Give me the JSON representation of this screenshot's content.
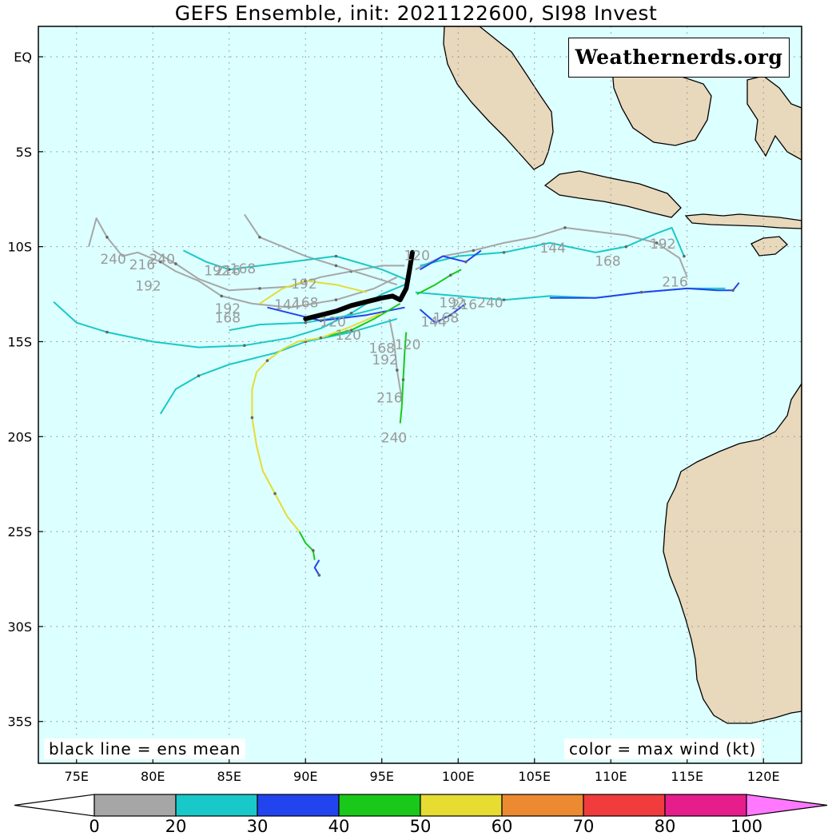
{
  "title": "GEFS Ensemble, init: 2021122600, SI98 Invest",
  "watermark": "Weathernerds.org",
  "notes": {
    "left": "black line = ens mean",
    "right": "color = max wind (kt)"
  },
  "map": {
    "lon_range": [
      72.5,
      122.5
    ],
    "lat_range": [
      -37.2,
      1.6
    ],
    "ocean_color": "#dcffff",
    "land_color": "#e8d8bc",
    "grid": "dotted"
  },
  "axes": {
    "x_ticks": [
      {
        "lon": 75,
        "label": "75E"
      },
      {
        "lon": 80,
        "label": "80E"
      },
      {
        "lon": 85,
        "label": "85E"
      },
      {
        "lon": 90,
        "label": "90E"
      },
      {
        "lon": 95,
        "label": "95E"
      },
      {
        "lon": 100,
        "label": "100E"
      },
      {
        "lon": 105,
        "label": "105E"
      },
      {
        "lon": 110,
        "label": "110E"
      },
      {
        "lon": 115,
        "label": "115E"
      },
      {
        "lon": 120,
        "label": "120E"
      }
    ],
    "y_ticks": [
      {
        "lat": 0,
        "label": "EQ"
      },
      {
        "lat": -5,
        "label": "5S"
      },
      {
        "lat": -10,
        "label": "10S"
      },
      {
        "lat": -15,
        "label": "15S"
      },
      {
        "lat": -20,
        "label": "20S"
      },
      {
        "lat": -25,
        "label": "25S"
      },
      {
        "lat": -30,
        "label": "30S"
      },
      {
        "lat": -35,
        "label": "35S"
      }
    ]
  },
  "colorbar": {
    "bins": [
      {
        "color": "#a6a6a6"
      },
      {
        "color": "#19c8c8"
      },
      {
        "color": "#2244ee"
      },
      {
        "color": "#19c819"
      },
      {
        "color": "#e6dc32"
      },
      {
        "color": "#ec8a32"
      },
      {
        "color": "#f03c3c"
      },
      {
        "color": "#e61e8c"
      }
    ],
    "over_color": "#ff78ff",
    "labels": [
      "0",
      "20",
      "30",
      "40",
      "50",
      "60",
      "70",
      "80",
      "100"
    ]
  },
  "tracks": {
    "ensemble_mean": [
      [
        90.0,
        -13.8
      ],
      [
        91.0,
        -13.6
      ],
      [
        92.0,
        -13.4
      ],
      [
        93.0,
        -13.1
      ],
      [
        94.0,
        -12.9
      ],
      [
        95.0,
        -12.7
      ],
      [
        95.7,
        -12.6
      ],
      [
        96.2,
        -12.8
      ],
      [
        96.6,
        -12.2
      ],
      [
        96.8,
        -11.3
      ],
      [
        97.0,
        -10.3
      ]
    ],
    "members": [
      {
        "color": "#a6a6a6",
        "points": [
          [
            96.0,
            -11.6
          ],
          [
            94.5,
            -12.2
          ],
          [
            92.0,
            -12.8
          ],
          [
            89.0,
            -13.2
          ],
          [
            86.5,
            -13.0
          ],
          [
            84.5,
            -12.6
          ],
          [
            83.0,
            -11.8
          ],
          [
            81.5,
            -11.3
          ],
          [
            80.5,
            -10.8
          ],
          [
            79.0,
            -10.3
          ],
          [
            78.0,
            -10.5
          ],
          [
            77.0,
            -9.5
          ],
          [
            76.3,
            -8.5
          ],
          [
            75.8,
            -10.0
          ]
        ]
      },
      {
        "color": "#a6a6a6",
        "points": [
          [
            96.5,
            -11.0
          ],
          [
            95.0,
            -11.0
          ],
          [
            93.0,
            -11.3
          ],
          [
            91.0,
            -11.6
          ],
          [
            89.0,
            -12.1
          ],
          [
            87.0,
            -12.2
          ],
          [
            85.0,
            -12.3
          ],
          [
            83.0,
            -11.7
          ],
          [
            81.5,
            -10.9
          ],
          [
            80.0,
            -10.2
          ]
        ]
      },
      {
        "color": "#a6a6a6",
        "points": [
          [
            97.2,
            -11.2
          ],
          [
            99.0,
            -10.5
          ],
          [
            101.0,
            -10.2
          ],
          [
            103.0,
            -9.8
          ],
          [
            105.0,
            -9.5
          ],
          [
            107.0,
            -9.0
          ],
          [
            109.0,
            -9.2
          ],
          [
            111.0,
            -9.4
          ],
          [
            113.0,
            -9.8
          ],
          [
            114.5,
            -10.6
          ],
          [
            115.0,
            -11.6
          ]
        ]
      },
      {
        "color": "#a6a6a6",
        "points": [
          [
            96.0,
            -12.0
          ],
          [
            94.0,
            -11.5
          ],
          [
            92.0,
            -11.0
          ],
          [
            90.0,
            -10.5
          ],
          [
            88.5,
            -10.0
          ],
          [
            87.0,
            -9.5
          ],
          [
            86.0,
            -8.3
          ]
        ]
      },
      {
        "color": "#a6a6a6",
        "points": [
          [
            95.5,
            -13.8
          ],
          [
            95.8,
            -15.0
          ],
          [
            96.0,
            -16.5
          ],
          [
            96.3,
            -18.0
          ]
        ]
      },
      {
        "color": "#19c8c8",
        "points": [
          [
            96.5,
            -12.0
          ],
          [
            95.0,
            -12.5
          ],
          [
            93.0,
            -13.5
          ],
          [
            91.0,
            -14.3
          ],
          [
            89.0,
            -14.8
          ],
          [
            86.0,
            -15.2
          ],
          [
            83.0,
            -15.3
          ],
          [
            80.0,
            -15.0
          ],
          [
            77.0,
            -14.5
          ],
          [
            75.0,
            -14.0
          ],
          [
            73.5,
            -12.9
          ]
        ]
      },
      {
        "color": "#19c8c8",
        "points": [
          [
            96.0,
            -13.8
          ],
          [
            93.0,
            -14.5
          ],
          [
            90.0,
            -15.0
          ],
          [
            88.0,
            -15.6
          ],
          [
            85.0,
            -16.2
          ],
          [
            83.0,
            -16.8
          ],
          [
            81.5,
            -17.5
          ],
          [
            80.5,
            -18.8
          ]
        ]
      },
      {
        "color": "#19c8c8",
        "points": [
          [
            96.8,
            -11.8
          ],
          [
            95.0,
            -11.2
          ],
          [
            92.0,
            -10.5
          ],
          [
            89.0,
            -10.8
          ],
          [
            87.0,
            -11.0
          ],
          [
            85.0,
            -11.2
          ],
          [
            83.5,
            -10.8
          ],
          [
            82.0,
            -10.2
          ]
        ]
      },
      {
        "color": "#19c8c8",
        "points": [
          [
            97.2,
            -12.4
          ],
          [
            100.0,
            -12.6
          ],
          [
            103.0,
            -12.8
          ],
          [
            106.0,
            -12.6
          ],
          [
            109.0,
            -12.7
          ],
          [
            112.0,
            -12.4
          ],
          [
            115.0,
            -12.2
          ],
          [
            117.5,
            -12.2
          ]
        ]
      },
      {
        "color": "#19c8c8",
        "points": [
          [
            97.5,
            -11.0
          ],
          [
            100.0,
            -10.5
          ],
          [
            103.0,
            -10.3
          ],
          [
            106.0,
            -9.8
          ],
          [
            109.0,
            -10.3
          ],
          [
            111.0,
            -10.0
          ],
          [
            113.0,
            -9.3
          ],
          [
            114.0,
            -9.0
          ],
          [
            114.8,
            -10.5
          ]
        ]
      },
      {
        "color": "#19c8c8",
        "points": [
          [
            95.0,
            -13.2
          ],
          [
            93.0,
            -13.6
          ],
          [
            90.0,
            -14.0
          ],
          [
            87.0,
            -14.1
          ],
          [
            85.0,
            -14.4
          ]
        ]
      },
      {
        "color": "#2244ee",
        "points": [
          [
            106.0,
            -12.7
          ],
          [
            109.0,
            -12.7
          ],
          [
            112.0,
            -12.4
          ],
          [
            115.0,
            -12.2
          ],
          [
            117.0,
            -12.3
          ],
          [
            118.0,
            -12.3
          ],
          [
            118.4,
            -11.9
          ]
        ]
      },
      {
        "color": "#2244ee",
        "points": [
          [
            97.5,
            -11.2
          ],
          [
            99.0,
            -10.5
          ],
          [
            100.5,
            -10.8
          ],
          [
            101.5,
            -10.2
          ]
        ]
      },
      {
        "color": "#2244ee",
        "points": [
          [
            96.5,
            -13.2
          ],
          [
            94.0,
            -13.6
          ],
          [
            91.0,
            -13.9
          ],
          [
            89.0,
            -13.5
          ],
          [
            87.5,
            -13.2
          ]
        ]
      },
      {
        "color": "#2244ee",
        "points": [
          [
            97.5,
            -13.3
          ],
          [
            98.5,
            -14.0
          ],
          [
            99.5,
            -13.6
          ],
          [
            100.5,
            -13.0
          ]
        ]
      },
      {
        "color": "#2244ee",
        "points": [
          [
            90.9,
            -26.5
          ],
          [
            90.6,
            -26.9
          ],
          [
            90.9,
            -27.3
          ]
        ]
      },
      {
        "color": "#19c819",
        "points": [
          [
            96.2,
            -13.0
          ],
          [
            94.5,
            -13.8
          ],
          [
            93.0,
            -14.4
          ],
          [
            91.5,
            -14.7
          ]
        ]
      },
      {
        "color": "#19c819",
        "points": [
          [
            97.3,
            -12.5
          ],
          [
            98.5,
            -12.0
          ],
          [
            99.5,
            -11.5
          ],
          [
            100.2,
            -11.2
          ]
        ]
      },
      {
        "color": "#19c819",
        "points": [
          [
            96.6,
            -14.5
          ],
          [
            96.5,
            -15.5
          ],
          [
            96.4,
            -17.0
          ],
          [
            96.3,
            -18.5
          ],
          [
            96.2,
            -19.3
          ]
        ]
      },
      {
        "color": "#19c819",
        "points": [
          [
            89.6,
            -25.0
          ],
          [
            90.0,
            -25.6
          ],
          [
            90.5,
            -26.0
          ],
          [
            90.6,
            -26.5
          ]
        ]
      },
      {
        "color": "#e6dc32",
        "points": [
          [
            95.0,
            -13.5
          ],
          [
            93.0,
            -14.2
          ],
          [
            91.0,
            -14.8
          ],
          [
            89.5,
            -15.0
          ],
          [
            88.5,
            -15.4
          ],
          [
            87.5,
            -16.0
          ],
          [
            86.8,
            -16.6
          ],
          [
            86.5,
            -17.5
          ],
          [
            86.5,
            -19.0
          ],
          [
            86.8,
            -20.5
          ],
          [
            87.2,
            -21.8
          ],
          [
            88.0,
            -23.0
          ],
          [
            88.8,
            -24.2
          ],
          [
            89.6,
            -25.0
          ]
        ]
      },
      {
        "color": "#e6dc32",
        "points": [
          [
            94.0,
            -12.4
          ],
          [
            92.0,
            -12.0
          ],
          [
            90.0,
            -11.8
          ],
          [
            88.5,
            -12.2
          ],
          [
            87.0,
            -13.0
          ]
        ]
      }
    ]
  },
  "forecast_hour_labels": [
    {
      "text": "240",
      "lon": 77.4,
      "lat": -10.9
    },
    {
      "text": "216",
      "lon": 79.3,
      "lat": -11.2
    },
    {
      "text": "240",
      "lon": 80.6,
      "lat": -10.9
    },
    {
      "text": "192",
      "lon": 79.7,
      "lat": -12.3
    },
    {
      "text": "192",
      "lon": 84.2,
      "lat": -11.5
    },
    {
      "text": "216",
      "lon": 84.9,
      "lat": -11.5
    },
    {
      "text": "168",
      "lon": 85.9,
      "lat": -11.4
    },
    {
      "text": "192",
      "lon": 84.9,
      "lat": -13.5
    },
    {
      "text": "168",
      "lon": 84.9,
      "lat": -14.0
    },
    {
      "text": "192",
      "lon": 89.9,
      "lat": -12.2
    },
    {
      "text": "144",
      "lon": 88.8,
      "lat": -13.3
    },
    {
      "text": "168",
      "lon": 90.0,
      "lat": -13.2
    },
    {
      "text": "120",
      "lon": 91.8,
      "lat": -14.2
    },
    {
      "text": "120",
      "lon": 92.8,
      "lat": -14.9
    },
    {
      "text": "168",
      "lon": 95.0,
      "lat": -15.6
    },
    {
      "text": "192",
      "lon": 95.2,
      "lat": -16.2
    },
    {
      "text": "120",
      "lon": 96.7,
      "lat": -15.4
    },
    {
      "text": "144",
      "lon": 98.4,
      "lat": -14.2
    },
    {
      "text": "168",
      "lon": 99.2,
      "lat": -14.0
    },
    {
      "text": "216",
      "lon": 100.4,
      "lat": -13.3
    },
    {
      "text": "192",
      "lon": 99.6,
      "lat": -13.2
    },
    {
      "text": "240",
      "lon": 102.1,
      "lat": -13.2
    },
    {
      "text": "216",
      "lon": 95.5,
      "lat": -18.2
    },
    {
      "text": "240",
      "lon": 95.8,
      "lat": -20.3
    },
    {
      "text": "144",
      "lon": 106.2,
      "lat": -10.3
    },
    {
      "text": "168",
      "lon": 109.8,
      "lat": -11.0
    },
    {
      "text": "192",
      "lon": 113.4,
      "lat": -10.1
    },
    {
      "text": "216",
      "lon": 114.2,
      "lat": -12.1
    },
    {
      "text": "120",
      "lon": 97.3,
      "lat": -10.7
    }
  ]
}
